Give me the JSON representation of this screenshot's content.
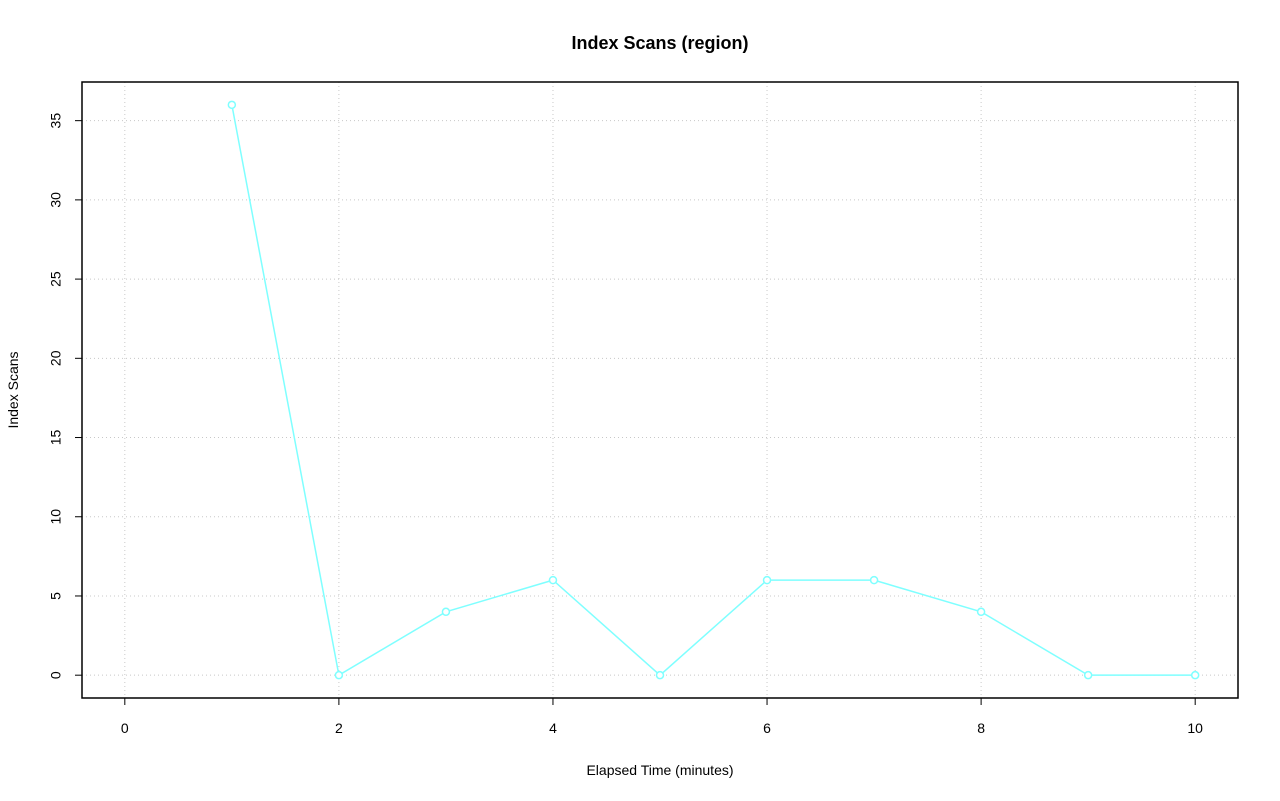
{
  "chart_data": {
    "type": "line",
    "title": "Index Scans (region)",
    "x_label": "Elapsed Time (minutes)",
    "y_label": "Index Scans",
    "x": [
      1,
      2,
      3,
      4,
      5,
      6,
      7,
      8,
      9,
      10
    ],
    "values": [
      36,
      0,
      4,
      6,
      0,
      6,
      6,
      4,
      0,
      0
    ],
    "color": "#7fffff",
    "xlim": [
      -0.4,
      10.4
    ],
    "xticks": [
      0,
      2,
      4,
      6,
      8,
      10
    ],
    "ylim": [
      -1.44,
      37.44
    ],
    "yticks": [
      0,
      5,
      10,
      15,
      20,
      25,
      30,
      35
    ],
    "grid": true
  }
}
